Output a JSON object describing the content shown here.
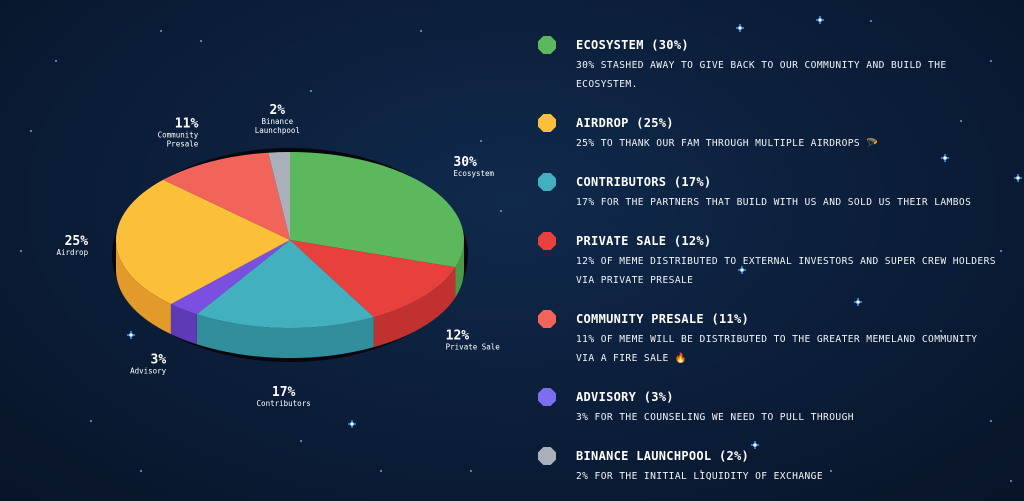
{
  "chart_data": {
    "type": "pie",
    "title": "",
    "slices": [
      {
        "name": "Ecosystem",
        "value": 30,
        "pct_label": "30%",
        "color": "#5cb85c",
        "side_color": "#4a9a4a"
      },
      {
        "name": "Private Sale",
        "value": 12,
        "pct_label": "12%",
        "color": "#e8413d",
        "side_color": "#c0322f"
      },
      {
        "name": "Contributors",
        "value": 17,
        "pct_label": "17%",
        "color": "#43b0c0",
        "side_color": "#338e9c"
      },
      {
        "name": "Advisory",
        "value": 3,
        "pct_label": "3%",
        "color": "#7b4fe0",
        "side_color": "#5f3ab8"
      },
      {
        "name": "Airdrop",
        "value": 25,
        "pct_label": "25%",
        "color": "#fbbf3a",
        "side_color": "#e29a2a"
      },
      {
        "name": "Community Presale",
        "value": 11,
        "pct_label": "11%",
        "color": "#f0645a",
        "side_color": "#d84c44"
      },
      {
        "name": "Binance Launchpool",
        "value": 2,
        "pct_label": "2%",
        "color": "#a9b0ba",
        "side_color": "#878e98"
      }
    ]
  },
  "legend": [
    {
      "title": "ECOSYSTEM (30%)",
      "desc": "30% STASHED AWAY TO GIVE BACK TO OUR COMMUNITY AND BUILD THE ECOSYSTEM.",
      "color": "#5cb85c"
    },
    {
      "title": "AIRDROP (25%)",
      "desc": "25% TO THANK OUR FAM THROUGH MULTIPLE AIRDROPS 🪂",
      "color": "#fbbf3a"
    },
    {
      "title": "CONTRIBUTORS (17%)",
      "desc": "17% FOR THE PARTNERS THAT BUILD WITH US AND SOLD US THEIR LAMBOS",
      "color": "#43b0c0"
    },
    {
      "title": "PRIVATE SALE (12%)",
      "desc": "12% OF MEME DISTRIBUTED TO EXTERNAL INVESTORS AND SUPER CREW HOLDERS VIA PRIVATE PRESALE",
      "color": "#e8413d"
    },
    {
      "title": "COMMUNITY PRESALE (11%)",
      "desc": "11% OF MEME WILL BE DISTRIBUTED TO THE GREATER MEMELAND COMMUNITY VIA A FIRE SALE 🔥",
      "color": "#f0645a"
    },
    {
      "title": "ADVISORY (3%)",
      "desc": "3% FOR THE COUNSELING WE NEED TO PULL THROUGH",
      "color": "#7b6ff0"
    },
    {
      "title": "BINANCE LAUNCHPOOL (2%)",
      "desc": "2% FOR THE INITIAL LIQUIDITY OF EXCHANGE",
      "color": "#a9b0ba"
    }
  ]
}
